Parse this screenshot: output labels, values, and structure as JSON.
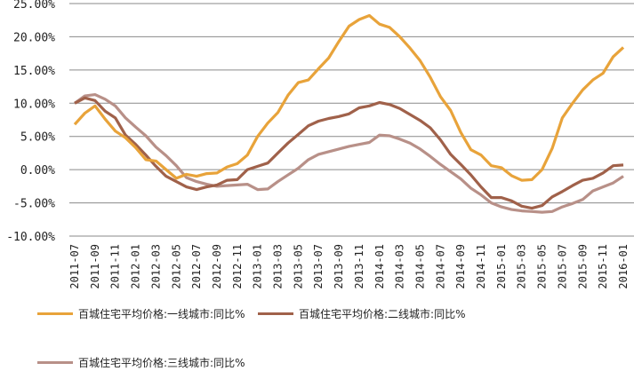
{
  "chart_data": {
    "type": "line",
    "title": "",
    "xlabel": "",
    "ylabel": "",
    "ylim": [
      -10,
      25
    ],
    "yticks": [
      "25.00%",
      "20.00%",
      "15.00%",
      "10.00%",
      "5.00%",
      "0.00%",
      "-5.00%",
      "-10.00%"
    ],
    "ytick_values": [
      25,
      20,
      15,
      10,
      5,
      0,
      -5,
      -10
    ],
    "grid": "horizontal",
    "legend_position": "bottom",
    "x": [
      "2011-07",
      "2011-08",
      "2011-09",
      "2011-10",
      "2011-11",
      "2011-12",
      "2012-01",
      "2012-02",
      "2012-03",
      "2012-04",
      "2012-05",
      "2012-06",
      "2012-07",
      "2012-08",
      "2012-09",
      "2012-10",
      "2012-11",
      "2012-12",
      "2013-01",
      "2013-02",
      "2013-03",
      "2013-04",
      "2013-05",
      "2013-06",
      "2013-07",
      "2013-08",
      "2013-09",
      "2013-10",
      "2013-11",
      "2013-12",
      "2014-01",
      "2014-02",
      "2014-03",
      "2014-04",
      "2014-05",
      "2014-06",
      "2014-07",
      "2014-08",
      "2014-09",
      "2014-10",
      "2014-11",
      "2014-12",
      "2015-01",
      "2015-02",
      "2015-03",
      "2015-04",
      "2015-05",
      "2015-06",
      "2015-07",
      "2015-08",
      "2015-09",
      "2015-10",
      "2015-11",
      "2015-12",
      "2016-01"
    ],
    "xtick_labels": [
      "2011-07",
      "2011-09",
      "2011-11",
      "2012-01",
      "2012-03",
      "2012-05",
      "2012-07",
      "2012-09",
      "2012-11",
      "2013-01",
      "2013-03",
      "2013-05",
      "2013-07",
      "2013-09",
      "2013-11",
      "2014-01",
      "2014-03",
      "2014-05",
      "2014-07",
      "2014-09",
      "2014-11",
      "2015-01",
      "2015-03",
      "2015-05",
      "2015-07",
      "2015-09",
      "2015-11",
      "2016-01"
    ],
    "series": [
      {
        "name": "百城住宅平均价格:一线城市:同比%",
        "color": "#E8A33A",
        "values": [
          6.8,
          8.5,
          9.6,
          7.6,
          5.8,
          4.8,
          3.3,
          1.5,
          1.3,
          0.0,
          -1.3,
          -0.7,
          -1.0,
          -0.6,
          -0.5,
          0.4,
          0.9,
          2.2,
          5.0,
          7.0,
          8.6,
          11.2,
          13.1,
          13.5,
          15.2,
          16.8,
          19.3,
          21.6,
          22.6,
          23.2,
          21.9,
          21.4,
          20.0,
          18.3,
          16.4,
          13.9,
          11.0,
          8.9,
          5.6,
          3.0,
          2.2,
          0.6,
          0.3,
          -0.9,
          -1.6,
          -1.5,
          0.0,
          3.2,
          7.8,
          10.0,
          12.0,
          13.5,
          14.5,
          17.0,
          18.4
        ]
      },
      {
        "name": "百城住宅平均价格:二线城市:同比%",
        "color": "#A0614A",
        "values": [
          10.0,
          10.8,
          10.4,
          8.8,
          7.8,
          5.2,
          3.8,
          2.2,
          0.5,
          -1.0,
          -1.8,
          -2.6,
          -3.0,
          -2.6,
          -2.3,
          -1.6,
          -1.5,
          0.0,
          0.5,
          1.0,
          2.5,
          4.0,
          5.3,
          6.6,
          7.3,
          7.7,
          8.0,
          8.4,
          9.3,
          9.6,
          10.1,
          9.8,
          9.2,
          8.3,
          7.4,
          6.3,
          4.5,
          2.3,
          0.8,
          -0.8,
          -2.6,
          -4.2,
          -4.2,
          -4.7,
          -5.5,
          -5.8,
          -5.4,
          -4.1,
          -3.3,
          -2.4,
          -1.6,
          -1.3,
          -0.5,
          0.6,
          0.7
        ]
      },
      {
        "name": "百城住宅平均价格:三线城市:同比%",
        "color": "#B89088",
        "values": [
          10.0,
          11.1,
          11.3,
          10.6,
          9.6,
          7.8,
          6.4,
          5.1,
          3.4,
          2.1,
          0.6,
          -1.2,
          -1.8,
          -2.2,
          -2.5,
          -2.4,
          -2.3,
          -2.2,
          -3.0,
          -2.9,
          -1.8,
          -0.8,
          0.2,
          1.5,
          2.3,
          2.7,
          3.1,
          3.5,
          3.8,
          4.1,
          5.2,
          5.1,
          4.6,
          4.0,
          3.1,
          2.0,
          0.8,
          -0.3,
          -1.4,
          -2.8,
          -3.8,
          -5.0,
          -5.6,
          -6.0,
          -6.2,
          -6.3,
          -6.4,
          -6.3,
          -5.6,
          -5.1,
          -4.5,
          -3.2,
          -2.6,
          -2.0,
          -1.0
        ]
      }
    ]
  }
}
